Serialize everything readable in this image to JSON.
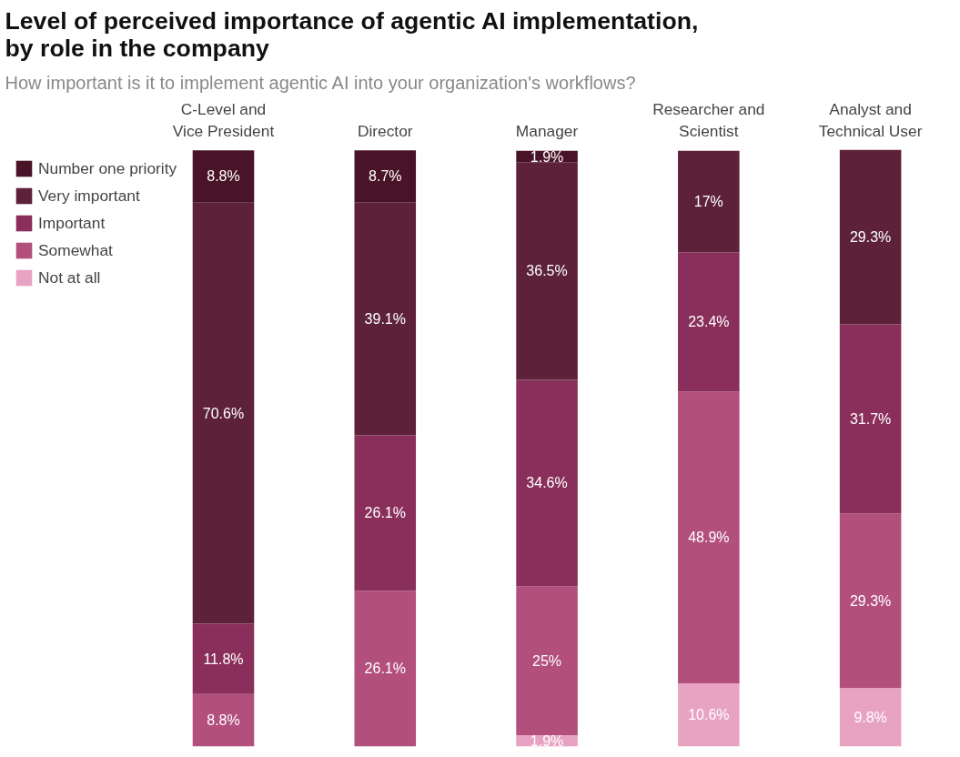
{
  "chart_data": {
    "type": "bar",
    "stacked": true,
    "title": "Level of perceived importance of agentic AI implementation, by role in the company",
    "subtitle": "How important is it to implement agentic AI into your organization's workflows?",
    "categories": [
      "C-Level and Vice President",
      "Director",
      "Manager",
      "Researcher and Scientist",
      "Analyst and Technical User"
    ],
    "series": [
      {
        "name": "Not at all",
        "color": "#e8a3c3",
        "values": [
          0,
          0,
          1.9,
          10.6,
          9.8
        ],
        "value_labels": [
          null,
          null,
          "1.9%",
          "10.6%",
          "9.8%"
        ]
      },
      {
        "name": "Somewhat",
        "color": "#b24f7c",
        "values": [
          8.8,
          26.1,
          25,
          48.9,
          29.3
        ],
        "value_labels": [
          "8.8%",
          "26.1%",
          "25%",
          "48.9%",
          "29.3%"
        ]
      },
      {
        "name": "Important",
        "color": "#8a2f5b",
        "values": [
          11.8,
          26.1,
          34.6,
          23.4,
          31.7
        ],
        "value_labels": [
          "11.8%",
          "26.1%",
          "34.6%",
          "23.4%",
          "31.7%"
        ]
      },
      {
        "name": "Very important",
        "color": "#5d223a",
        "values": [
          70.6,
          39.1,
          36.5,
          17,
          29.3
        ],
        "value_labels": [
          "70.6%",
          "39.1%",
          "36.5%",
          "17%",
          "29.3%"
        ]
      },
      {
        "name": "Number one priority",
        "color": "#4a1428",
        "values": [
          8.8,
          8.7,
          1.9,
          0,
          0
        ],
        "value_labels": [
          "8.8%",
          "8.7%",
          "1.9%",
          null,
          null
        ]
      }
    ],
    "legend": "left",
    "grid": false,
    "tick_labels": "x"
  }
}
